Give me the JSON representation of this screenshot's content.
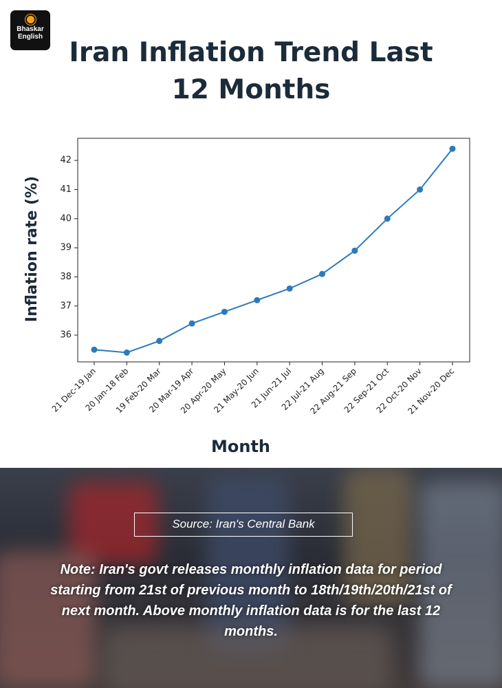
{
  "brand": {
    "name": "Bhaskar",
    "edition": "English"
  },
  "chart_data": {
    "type": "line",
    "title": "Iran Inflation Trend Last 12 Months",
    "x_label": "Month",
    "y_label": "Inflation rate (%)",
    "categories": [
      "21 Dec-19 Jan",
      "20 Jan-18 Feb",
      "19 Feb-20 Mar",
      "20 Mar-19 Apr",
      "20 Apr-20 May",
      "21 May-20 Jun",
      "21 Jun-21 Jul",
      "22 Jul-21 Aug",
      "22 Aug-21 Sep",
      "22 Sep-21 Oct",
      "22 Oct-20 Nov",
      "21 Nov-20 Dec"
    ],
    "values": [
      35.5,
      35.4,
      35.8,
      36.4,
      36.8,
      37.2,
      37.6,
      38.1,
      38.9,
      40.0,
      41.0,
      42.4
    ],
    "color": "#2b7bba",
    "ylim": [
      35.08,
      42.76
    ],
    "yticks": [
      36,
      37,
      38,
      39,
      40,
      41,
      42
    ],
    "grid": false
  },
  "source": "Source: Iran's Central Bank",
  "note": "Note: Iran's govt releases monthly inflation data for period starting from 21st of previous month to 18th/19th/20th/21st of next month. Above monthly inflation data is for the last 12 months."
}
